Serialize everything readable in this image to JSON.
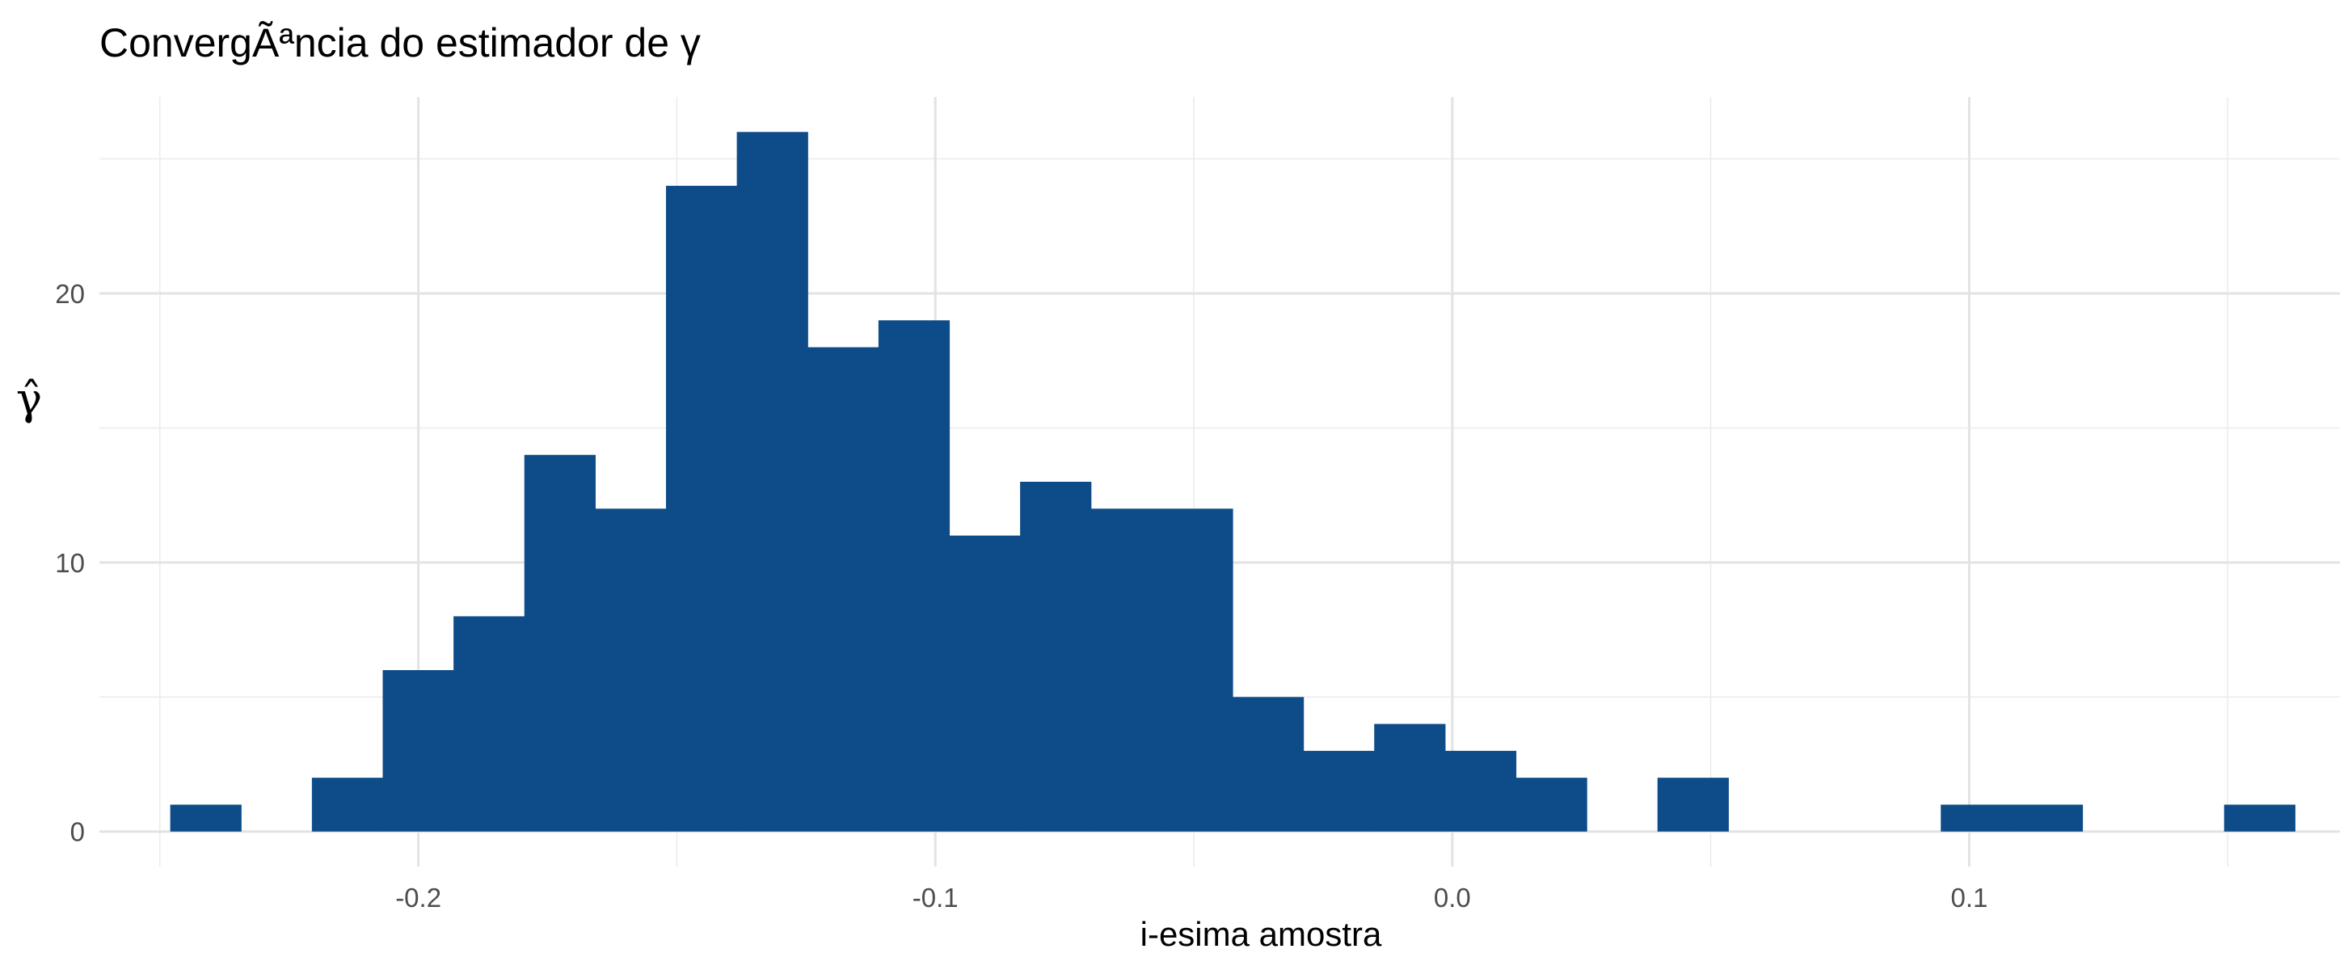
{
  "chart_data": {
    "type": "bar",
    "title": "ConvergÃªncia do estimador de γ",
    "xlabel": "i-esima amostra",
    "ylabel": "γ̂",
    "xlim": [
      -0.2617,
      0.1717
    ],
    "ylim": [
      -1.3,
      27.3
    ],
    "x_ticks": [
      -0.2,
      -0.1,
      0.0,
      0.1
    ],
    "x_tick_labels": [
      "-0.2",
      "-0.1",
      "0.0",
      "0.1"
    ],
    "y_ticks": [
      0,
      10,
      20
    ],
    "y_tick_labels": [
      "0",
      "10",
      "20"
    ],
    "grid": true,
    "fill_color": "#0d4c89",
    "bin_width": 0.0137,
    "bins": [
      {
        "x0": -0.248,
        "x1": -0.2343,
        "count": 1
      },
      {
        "x0": -0.2343,
        "x1": -0.2206,
        "count": 0
      },
      {
        "x0": -0.2206,
        "x1": -0.2069,
        "count": 2
      },
      {
        "x0": -0.2069,
        "x1": -0.1932,
        "count": 6
      },
      {
        "x0": -0.1932,
        "x1": -0.1795,
        "count": 8
      },
      {
        "x0": -0.1795,
        "x1": -0.1658,
        "count": 14
      },
      {
        "x0": -0.1658,
        "x1": -0.1521,
        "count": 12
      },
      {
        "x0": -0.1521,
        "x1": -0.1384,
        "count": 24
      },
      {
        "x0": -0.1384,
        "x1": -0.1247,
        "count": 26
      },
      {
        "x0": -0.1247,
        "x1": -0.111,
        "count": 18
      },
      {
        "x0": -0.111,
        "x1": -0.0973,
        "count": 19
      },
      {
        "x0": -0.0973,
        "x1": -0.0836,
        "count": 11
      },
      {
        "x0": -0.0836,
        "x1": -0.0699,
        "count": 13
      },
      {
        "x0": -0.0699,
        "x1": -0.0562,
        "count": 12
      },
      {
        "x0": -0.0562,
        "x1": -0.0425,
        "count": 12
      },
      {
        "x0": -0.0425,
        "x1": -0.0288,
        "count": 5
      },
      {
        "x0": -0.0288,
        "x1": -0.0151,
        "count": 3
      },
      {
        "x0": -0.0151,
        "x1": -0.0014,
        "count": 4
      },
      {
        "x0": -0.0014,
        "x1": 0.0123,
        "count": 3
      },
      {
        "x0": 0.0123,
        "x1": 0.026,
        "count": 2
      },
      {
        "x0": 0.026,
        "x1": 0.0397,
        "count": 0
      },
      {
        "x0": 0.0397,
        "x1": 0.0534,
        "count": 2
      },
      {
        "x0": 0.0534,
        "x1": 0.0671,
        "count": 0
      },
      {
        "x0": 0.0671,
        "x1": 0.0808,
        "count": 0
      },
      {
        "x0": 0.0808,
        "x1": 0.0945,
        "count": 0
      },
      {
        "x0": 0.0945,
        "x1": 0.1082,
        "count": 1
      },
      {
        "x0": 0.1082,
        "x1": 0.1219,
        "count": 1
      },
      {
        "x0": 0.1219,
        "x1": 0.1356,
        "count": 0
      },
      {
        "x0": 0.1356,
        "x1": 0.1493,
        "count": 0
      },
      {
        "x0": 0.1493,
        "x1": 0.163,
        "count": 1
      }
    ]
  }
}
